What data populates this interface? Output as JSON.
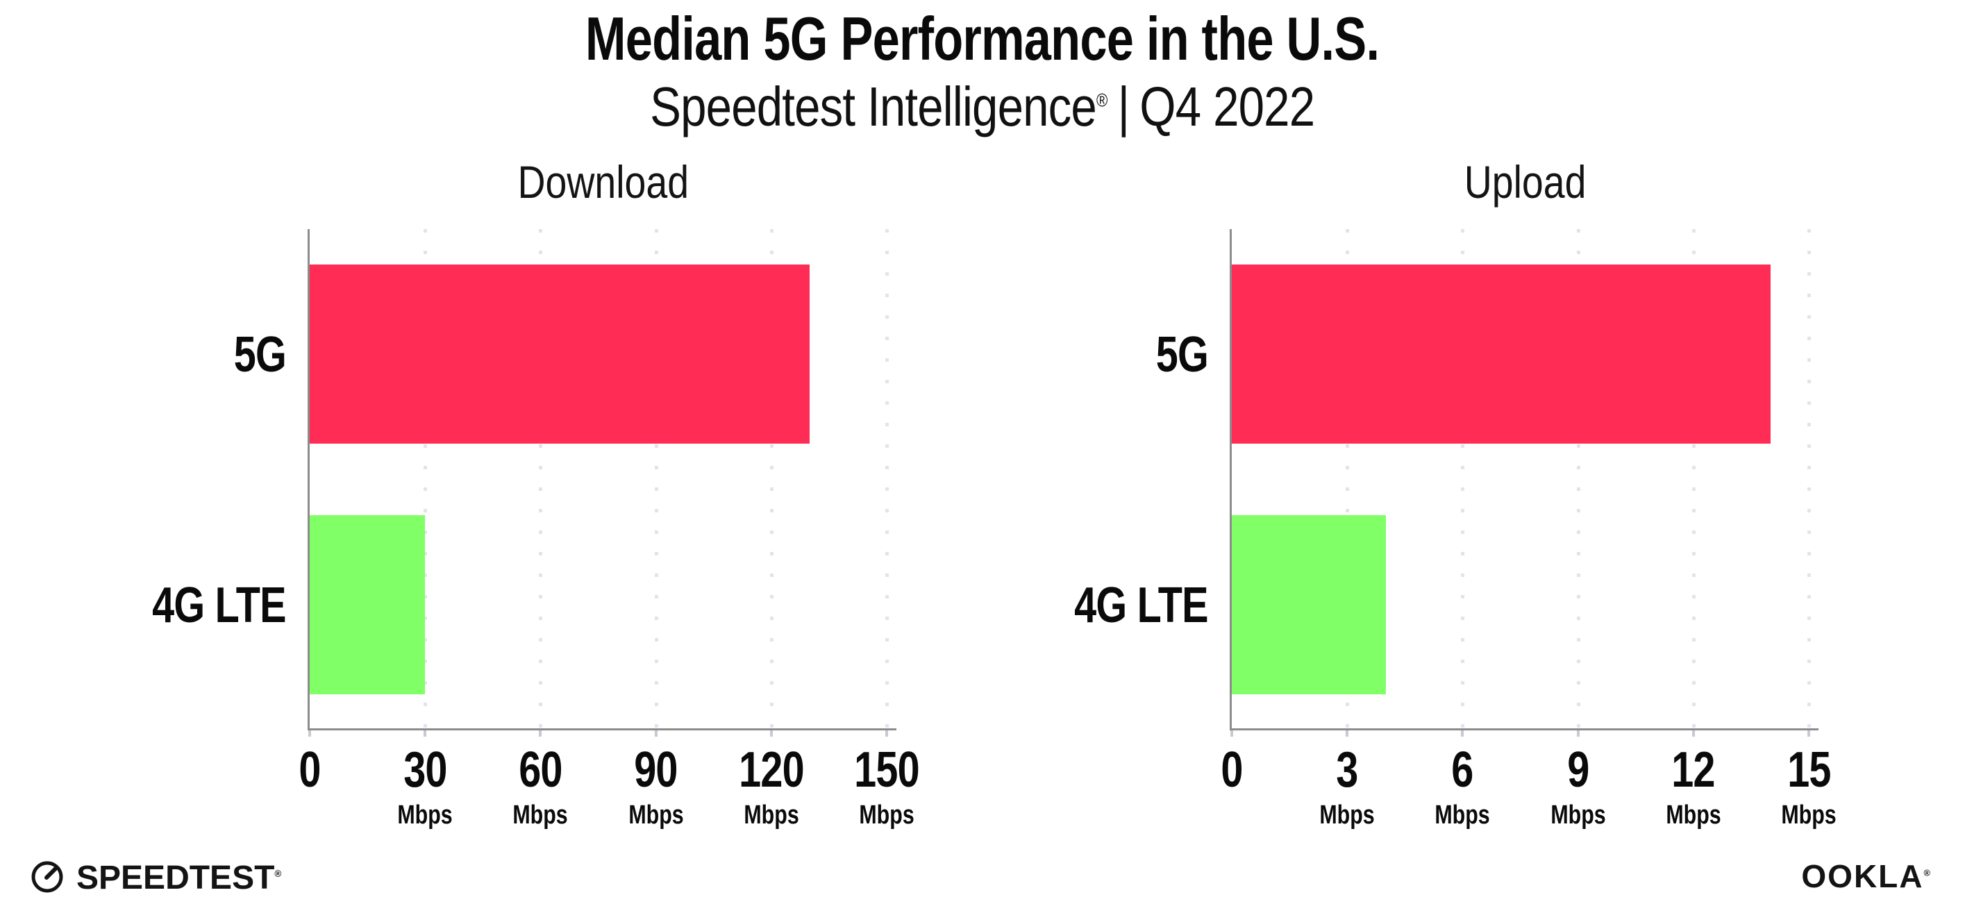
{
  "header": {
    "title": "Median 5G Performance in the U.S.",
    "subtitle_brand": "Speedtest Intelligence",
    "subtitle_reg": "®",
    "subtitle_divider": "|",
    "subtitle_period": "Q4 2022"
  },
  "chart_data": [
    {
      "type": "bar",
      "orientation": "horizontal",
      "title": "Download",
      "categories": [
        "5G",
        "4G LTE"
      ],
      "values": [
        130,
        30
      ],
      "unit": "Mbps",
      "xlim": [
        0,
        150
      ],
      "ticks": [
        0,
        30,
        60,
        90,
        120,
        150
      ],
      "tick_unit_label": "Mbps",
      "bar_colors": [
        "#FF2D55",
        "#80FF66"
      ],
      "grid": "dotted-vertical",
      "xlabel": "",
      "ylabel": ""
    },
    {
      "type": "bar",
      "orientation": "horizontal",
      "title": "Upload",
      "categories": [
        "5G",
        "4G LTE"
      ],
      "values": [
        14,
        4
      ],
      "unit": "Mbps",
      "xlim": [
        0,
        15
      ],
      "ticks": [
        0,
        3,
        6,
        9,
        12,
        15
      ],
      "tick_unit_label": "Mbps",
      "bar_colors": [
        "#FF2D55",
        "#80FF66"
      ],
      "grid": "dotted-vertical",
      "xlabel": "",
      "ylabel": ""
    }
  ],
  "footer": {
    "speedtest_logo_text": "SPEEDTEST",
    "speedtest_reg": "®",
    "ookla_logo_text": "OOKLA",
    "ookla_reg": "®"
  },
  "colors": {
    "bar_5g": "#FF2D55",
    "bar_4g_lte": "#80FF66",
    "axis": "#8C8C8C",
    "gridline": "#E3E3EE",
    "text": "#0A0A0A"
  }
}
